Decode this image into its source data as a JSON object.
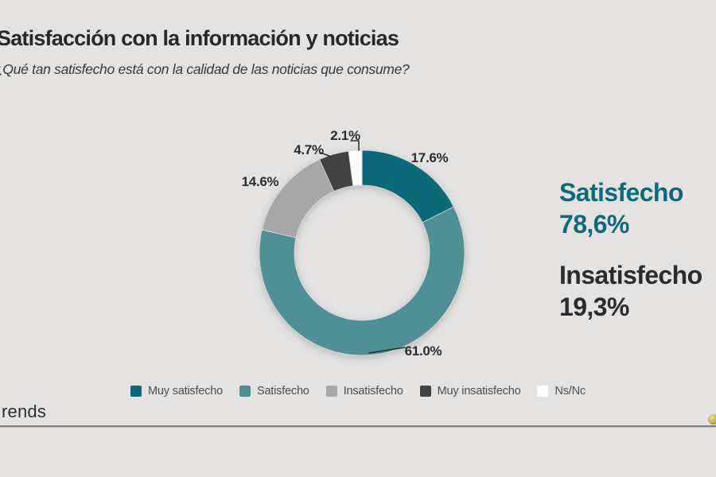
{
  "page": {
    "background_color": "#e4e3e2"
  },
  "header": {
    "title": "Satisfacción con la información y noticias",
    "subtitle": "¿Qué tan satisfecho está con la calidad de las noticias que consume?"
  },
  "chart_data": {
    "type": "pie",
    "subtype": "donut",
    "title": "Satisfacción con la información y noticias",
    "start_angle_deg": 0,
    "direction": "clockwise",
    "slices": [
      {
        "name": "Muy satisfecho",
        "value": 17.6,
        "label": "17.6%",
        "color": "#0c6a78"
      },
      {
        "name": "Satisfecho",
        "value": 61.0,
        "label": "61.0%",
        "color": "#4f9097"
      },
      {
        "name": "Insatisfecho",
        "value": 14.6,
        "label": "14.6%",
        "color": "#a7a7a7"
      },
      {
        "name": "Muy insatisfecho",
        "value": 4.7,
        "label": "4.7%",
        "color": "#424242"
      },
      {
        "name": "Ns/Nc",
        "value": 2.1,
        "label": "2.1%",
        "color": "#fdfdfd"
      }
    ],
    "legend_position": "bottom",
    "summary": [
      {
        "label": "Satisfecho",
        "value": "78,6%",
        "color": "#0e6a7b"
      },
      {
        "label": "Insatisfecho",
        "value": "19,3%",
        "color": "#2b2b30"
      }
    ]
  },
  "footer": {
    "brand": "rends"
  }
}
